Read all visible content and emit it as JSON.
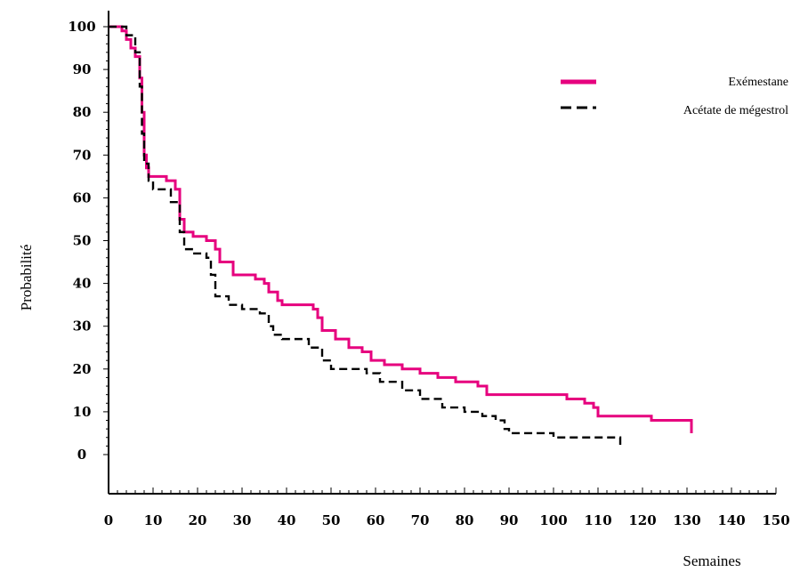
{
  "chart_data": {
    "type": "line",
    "title": "",
    "xlabel": "Semaines",
    "ylabel": "Probabilité",
    "xlim": [
      0,
      150
    ],
    "ylim": [
      0,
      100
    ],
    "xticks": [
      "0",
      "10",
      "20",
      "30",
      "40",
      "50",
      "60",
      "70",
      "80",
      "90",
      "100",
      "110",
      "120",
      "130",
      "140",
      "150"
    ],
    "yticks": [
      "0",
      "10",
      "20",
      "30",
      "40",
      "50",
      "60",
      "70",
      "80",
      "90",
      "100"
    ],
    "legend_position": "top-right",
    "series": [
      {
        "name": "Exémestane",
        "color": "#e6007e",
        "style": "solid",
        "x": [
          0,
          2,
          3,
          4,
          5,
          6,
          7,
          7.5,
          8,
          8.5,
          9,
          10,
          13,
          15,
          16,
          17,
          19,
          22,
          24,
          25,
          28,
          33,
          34,
          35,
          36,
          38,
          39,
          43,
          46,
          47,
          48,
          51,
          54,
          57,
          59,
          62,
          66,
          70,
          74,
          78,
          83,
          85,
          95,
          102,
          103,
          107,
          109,
          110,
          114,
          118,
          121,
          122,
          127,
          131,
          131
        ],
        "y": [
          100,
          100,
          99,
          97,
          95,
          93,
          88,
          80,
          70,
          67,
          65,
          65,
          64,
          62,
          55,
          52,
          51,
          50,
          48,
          45,
          42,
          41,
          41,
          40,
          38,
          36,
          35,
          35,
          34,
          32,
          29,
          27,
          25,
          24,
          22,
          21,
          20,
          19,
          18,
          17,
          16,
          14,
          14,
          14,
          13,
          12,
          11,
          9,
          9,
          9,
          9,
          8,
          8,
          7,
          5
        ]
      },
      {
        "name": "Acétate de mégestrol",
        "color": "#000000",
        "style": "dashed",
        "x": [
          0,
          2,
          4,
          6,
          7,
          7.5,
          8,
          9,
          10,
          14,
          16,
          17,
          19,
          22,
          23,
          24,
          27,
          30,
          34,
          36,
          37,
          39,
          45,
          48,
          50,
          55,
          58,
          61,
          66,
          70,
          75,
          80,
          84,
          87,
          89,
          90,
          95,
          100,
          107,
          114,
          115
        ],
        "y": [
          100,
          100,
          98,
          94,
          86,
          75,
          68,
          64,
          62,
          59,
          52,
          48,
          47,
          46,
          42,
          37,
          35,
          34,
          33,
          30,
          28,
          27,
          25,
          22,
          20,
          20,
          19,
          17,
          15,
          13,
          11,
          10,
          9,
          8,
          6,
          5,
          5,
          4,
          4,
          4,
          2
        ]
      }
    ]
  }
}
